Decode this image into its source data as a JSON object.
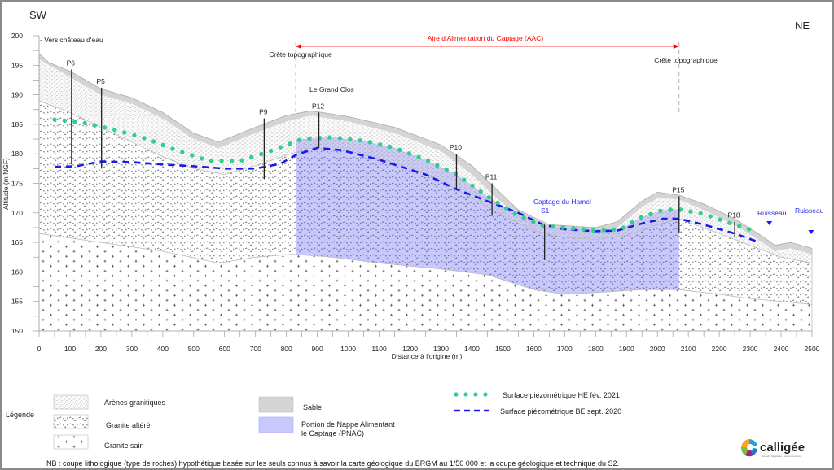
{
  "orientation": {
    "left": "SW",
    "right": "NE"
  },
  "top_note": "- Vers château d'eau",
  "aac_label": "Aire d'Alimentation du Captage (AAC)",
  "ridge_label": "Crête topographique",
  "place_label": "Le Grand Clos",
  "captage_label": [
    "Captage du Hamel",
    "S1"
  ],
  "stream_label": "Ruisseau",
  "colors": {
    "aac": "#ff0000",
    "pnac": "#c8c8ff",
    "sable": "#d4d4d4",
    "piezo_he": "#2fcf8f",
    "piezo_be": "#1a1aee",
    "blue_text": "#2a2aee"
  },
  "chart_data": {
    "type": "cross-section",
    "xlabel": "Distance à l'origine (m)",
    "ylabel": "Altitude (m NGF)",
    "xlim": [
      0,
      2500
    ],
    "ylim": [
      150,
      200
    ],
    "xticks": [
      0,
      100,
      200,
      300,
      400,
      500,
      600,
      700,
      800,
      900,
      1000,
      1100,
      1200,
      1300,
      1400,
      1500,
      1600,
      1700,
      1800,
      1900,
      2000,
      2100,
      2200,
      2300,
      2400,
      2500
    ],
    "yticks": [
      150,
      155,
      160,
      165,
      170,
      175,
      180,
      185,
      190,
      195,
      200
    ],
    "terrain": [
      [
        0,
        197
      ],
      [
        30,
        195.5
      ],
      [
        100,
        194
      ],
      [
        150,
        192.5
      ],
      [
        200,
        191
      ],
      [
        300,
        189.5
      ],
      [
        400,
        187
      ],
      [
        500,
        183.5
      ],
      [
        580,
        182
      ],
      [
        700,
        184.5
      ],
      [
        800,
        186.5
      ],
      [
        880,
        187.3
      ],
      [
        1000,
        186.3
      ],
      [
        1150,
        184.5
      ],
      [
        1300,
        181.5
      ],
      [
        1400,
        178
      ],
      [
        1480,
        174
      ],
      [
        1550,
        170.5
      ],
      [
        1650,
        168
      ],
      [
        1800,
        167.5
      ],
      [
        1870,
        168.5
      ],
      [
        1950,
        172
      ],
      [
        2000,
        173.5
      ],
      [
        2070,
        173
      ],
      [
        2150,
        171.5
      ],
      [
        2250,
        169
      ],
      [
        2340,
        166
      ],
      [
        2380,
        164.5
      ],
      [
        2430,
        165
      ],
      [
        2500,
        164
      ]
    ],
    "sable_base": [
      [
        0,
        196
      ],
      [
        100,
        193
      ],
      [
        200,
        190
      ],
      [
        300,
        188.5
      ],
      [
        400,
        186
      ],
      [
        500,
        182.5
      ],
      [
        580,
        181
      ],
      [
        700,
        183.5
      ],
      [
        800,
        185.5
      ],
      [
        880,
        186.5
      ],
      [
        1000,
        185.5
      ],
      [
        1150,
        183.5
      ],
      [
        1300,
        180.5
      ],
      [
        1400,
        176.5
      ],
      [
        1480,
        172.5
      ],
      [
        1550,
        169.5
      ],
      [
        1650,
        167
      ],
      [
        1800,
        166.5
      ],
      [
        1870,
        167.5
      ],
      [
        1950,
        171
      ],
      [
        2000,
        172.5
      ],
      [
        2070,
        172.3
      ],
      [
        2150,
        170.5
      ],
      [
        2250,
        168
      ],
      [
        2340,
        165
      ],
      [
        2380,
        163.5
      ],
      [
        2430,
        164
      ],
      [
        2500,
        163
      ]
    ],
    "arenes_base": [
      [
        0,
        189
      ],
      [
        100,
        187
      ],
      [
        200,
        184.5
      ],
      [
        300,
        182
      ],
      [
        400,
        179.5
      ],
      [
        500,
        177.5
      ],
      [
        600,
        176.5
      ],
      [
        700,
        178
      ],
      [
        800,
        179.8
      ],
      [
        880,
        181
      ],
      [
        1000,
        180.5
      ],
      [
        1150,
        178.5
      ],
      [
        1300,
        175.5
      ],
      [
        1400,
        172.5
      ],
      [
        1500,
        169.5
      ],
      [
        1600,
        167
      ],
      [
        1700,
        165.8
      ],
      [
        1800,
        165.5
      ],
      [
        1900,
        166.2
      ],
      [
        2000,
        168
      ],
      [
        2070,
        169
      ],
      [
        2200,
        166.5
      ],
      [
        2300,
        164.5
      ],
      [
        2400,
        162.5
      ],
      [
        2500,
        161.5
      ]
    ],
    "altere_base": [
      [
        0,
        166.5
      ],
      [
        200,
        165
      ],
      [
        400,
        163.5
      ],
      [
        580,
        161.5
      ],
      [
        700,
        162.5
      ],
      [
        820,
        163
      ],
      [
        950,
        162.5
      ],
      [
        1100,
        161.5
      ],
      [
        1300,
        160.5
      ],
      [
        1450,
        159.5
      ],
      [
        1600,
        157
      ],
      [
        1700,
        156.2
      ],
      [
        1800,
        156.5
      ],
      [
        1950,
        157
      ],
      [
        2070,
        157
      ],
      [
        2200,
        156.2
      ],
      [
        2300,
        155.5
      ],
      [
        2500,
        154.5
      ]
    ],
    "pnac": {
      "x_start": 830,
      "x_end": 2070
    },
    "piezo_he": {
      "label": "Surface piézométrique HE fév. 2021",
      "points": [
        [
          50,
          185.8
        ],
        [
          150,
          185.2
        ],
        [
          250,
          184
        ],
        [
          350,
          182.5
        ],
        [
          450,
          180.5
        ],
        [
          550,
          178.8
        ],
        [
          650,
          178.8
        ],
        [
          750,
          180.5
        ],
        [
          850,
          182.5
        ],
        [
          950,
          182.8
        ],
        [
          1050,
          182.2
        ],
        [
          1150,
          181
        ],
        [
          1250,
          179
        ],
        [
          1350,
          176.5
        ],
        [
          1450,
          172.8
        ],
        [
          1550,
          169.5
        ],
        [
          1630,
          167.8
        ],
        [
          1700,
          167.5
        ],
        [
          1800,
          167
        ],
        [
          1880,
          167.2
        ],
        [
          1950,
          169.3
        ],
        [
          2020,
          170.5
        ],
        [
          2070,
          170.6
        ],
        [
          2150,
          169.8
        ],
        [
          2250,
          168
        ],
        [
          2310,
          167
        ]
      ]
    },
    "piezo_be": {
      "label": "Surface piézométrique BE sept. 2020",
      "points": [
        [
          50,
          177.8
        ],
        [
          120,
          177.9
        ],
        [
          200,
          178.7
        ],
        [
          300,
          178.6
        ],
        [
          400,
          178.2
        ],
        [
          500,
          177.9
        ],
        [
          600,
          177.5
        ],
        [
          700,
          177.5
        ],
        [
          780,
          178.3
        ],
        [
          830,
          179.8
        ],
        [
          900,
          181
        ],
        [
          980,
          180.6
        ],
        [
          1100,
          179
        ],
        [
          1250,
          176.5
        ],
        [
          1350,
          174
        ],
        [
          1450,
          172
        ],
        [
          1550,
          170
        ],
        [
          1630,
          168
        ],
        [
          1700,
          167.2
        ],
        [
          1800,
          166.9
        ],
        [
          1870,
          167
        ],
        [
          1950,
          168.2
        ],
        [
          2020,
          169
        ],
        [
          2070,
          169
        ],
        [
          2150,
          168
        ],
        [
          2250,
          166.5
        ],
        [
          2330,
          165
        ]
      ]
    },
    "wells": [
      {
        "name": "P6",
        "x": 105,
        "top": 194.3,
        "bottom": 178.2
      },
      {
        "name": "P5",
        "x": 202,
        "top": 191.2,
        "bottom": 177.5
      },
      {
        "name": "P9",
        "x": 728,
        "top": 186,
        "bottom": 175.7
      },
      {
        "name": "P12",
        "x": 905,
        "top": 187,
        "bottom": 181
      },
      {
        "name": "P10",
        "x": 1350,
        "top": 180,
        "bottom": 174
      },
      {
        "name": "P11",
        "x": 1465,
        "top": 175,
        "bottom": 169.5
      },
      {
        "name": "S1",
        "x": 1635,
        "top": 168,
        "bottom": 162,
        "show_label": false
      },
      {
        "name": "P15",
        "x": 2070,
        "top": 172.8,
        "bottom": 166.6
      },
      {
        "name": "P18",
        "x": 2250,
        "top": 168.5,
        "bottom": 166
      }
    ],
    "ridges": [
      830,
      2070
    ],
    "streams": [
      2370,
      2505
    ]
  },
  "legend": {
    "title": "Légende",
    "items": [
      {
        "label": "Arènes granitiques"
      },
      {
        "label": "Granite altéré"
      },
      {
        "label": "Granite sain"
      },
      {
        "label": "Sable"
      },
      {
        "label": "Portion de Nappe Alimentant le Captage (PNAC)"
      }
    ],
    "pnac_line1": "Portion de Nappe Alimentant",
    "pnac_line2": "le Captage (PNAC)",
    "piezo_he": "Surface piézométrique HE fév. 2021",
    "piezo_be": "Surface piézométrique BE sept. 2020"
  },
  "note": "NB : coupe lithologique (type de roches) hypothétique basée sur les seuls connus à savoir la carte géologique du BRGM au 1/50 000 et la coupe géologique et technique du S2.",
  "logo": {
    "name": "calligée",
    "tagline": "conseil · ingénierie · environnement"
  }
}
